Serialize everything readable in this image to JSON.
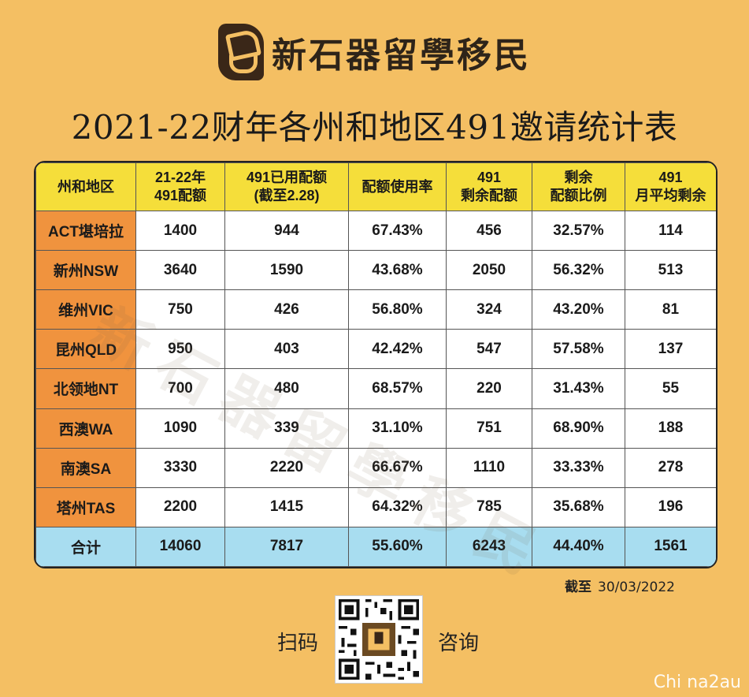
{
  "brand": {
    "name": "新石器留學移民"
  },
  "title": "2021-22财年各州和地区491邀请统计表",
  "watermark": "新石器留學移民",
  "table": {
    "headers": [
      [
        "州和地区"
      ],
      [
        "21-22年",
        "491配额"
      ],
      [
        "491已用配额",
        "(截至2.28)"
      ],
      [
        "配额使用率"
      ],
      [
        "491",
        "剩余配额"
      ],
      [
        "剩余",
        "配额比例"
      ],
      [
        "491",
        "月平均剩余"
      ]
    ],
    "rows": [
      [
        "ACT堪培拉",
        "1400",
        "944",
        "67.43%",
        "456",
        "32.57%",
        "114"
      ],
      [
        "新州NSW",
        "3640",
        "1590",
        "43.68%",
        "2050",
        "56.32%",
        "513"
      ],
      [
        "维州VIC",
        "750",
        "426",
        "56.80%",
        "324",
        "43.20%",
        "81"
      ],
      [
        "昆州QLD",
        "950",
        "403",
        "42.42%",
        "547",
        "57.58%",
        "137"
      ],
      [
        "北领地NT",
        "700",
        "480",
        "68.57%",
        "220",
        "31.43%",
        "55"
      ],
      [
        "西澳WA",
        "1090",
        "339",
        "31.10%",
        "751",
        "68.90%",
        "188"
      ],
      [
        "南澳SA",
        "3330",
        "2220",
        "66.67%",
        "1110",
        "33.33%",
        "278"
      ],
      [
        "塔州TAS",
        "2200",
        "1415",
        "64.32%",
        "785",
        "35.68%",
        "196"
      ]
    ],
    "total": [
      "合计",
      "14060",
      "7817",
      "55.60%",
      "6243",
      "44.40%",
      "1561"
    ]
  },
  "date_note": {
    "label": "截至",
    "value": "30/03/2022"
  },
  "scan": {
    "left": "扫码",
    "right": "咨询"
  },
  "corner_text": "Chi na2au",
  "colors": {
    "background": "#F4BF63",
    "header": "#F5DE3A",
    "region": "#F0933E",
    "total": "#A8DDF0"
  }
}
